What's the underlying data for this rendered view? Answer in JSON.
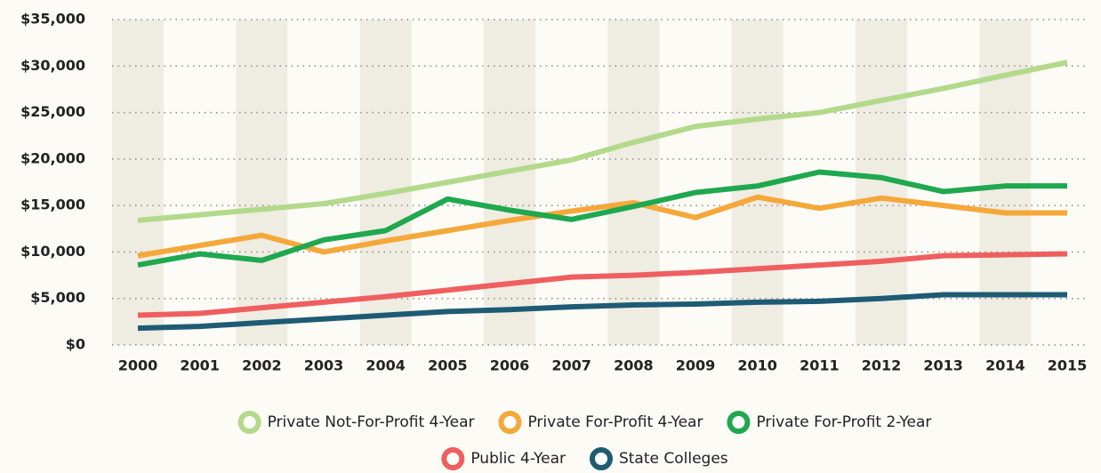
{
  "chart_data": {
    "type": "line",
    "categories": [
      "2000",
      "2001",
      "2002",
      "2003",
      "2004",
      "2005",
      "2006",
      "2007",
      "2008",
      "2009",
      "2010",
      "2011",
      "2012",
      "2013",
      "2014",
      "2015"
    ],
    "series": [
      {
        "name": "Private Not-For-Profit 4-Year",
        "color": "#b3d98a",
        "values": [
          13400,
          14000,
          14600,
          15200,
          16300,
          17500,
          18700,
          19900,
          21800,
          23500,
          24300,
          25000,
          26300,
          27600,
          29000,
          30400
        ]
      },
      {
        "name": "Private For-Profit 4-Year",
        "color": "#f5a83a",
        "values": [
          9600,
          10700,
          11800,
          10000,
          11200,
          12300,
          13400,
          14400,
          15300,
          13700,
          15900,
          14700,
          15800,
          15000,
          14200,
          14200
        ]
      },
      {
        "name": "Private For-Profit 2-Year",
        "color": "#1fa84f",
        "values": [
          8600,
          9800,
          9100,
          11300,
          12300,
          15700,
          14500,
          13500,
          14900,
          16400,
          17100,
          18600,
          18000,
          16500,
          17100,
          17100
        ]
      },
      {
        "name": "Public 4-Year",
        "color": "#ef5f5f",
        "values": [
          3200,
          3400,
          4000,
          4600,
          5200,
          5900,
          6600,
          7300,
          7500,
          7800,
          8200,
          8600,
          9000,
          9600,
          9700,
          9800
        ]
      },
      {
        "name": "State Colleges",
        "color": "#1e5b74",
        "values": [
          1800,
          2000,
          2400,
          2800,
          3200,
          3600,
          3800,
          4100,
          4300,
          4400,
          4600,
          4700,
          5000,
          5400,
          5400,
          5400
        ]
      }
    ],
    "ylim": [
      0,
      35000
    ],
    "yticks": [
      {
        "value": 0,
        "label": "$0"
      },
      {
        "value": 5000,
        "label": "$5,000"
      },
      {
        "value": 10000,
        "label": "$10,000"
      },
      {
        "value": 15000,
        "label": "$15,000"
      },
      {
        "value": 20000,
        "label": "$20,000"
      },
      {
        "value": 25000,
        "label": "$25,000"
      },
      {
        "value": 30000,
        "label": "$30,000"
      },
      {
        "value": 35000,
        "label": "$35,000"
      }
    ],
    "grid": true
  }
}
